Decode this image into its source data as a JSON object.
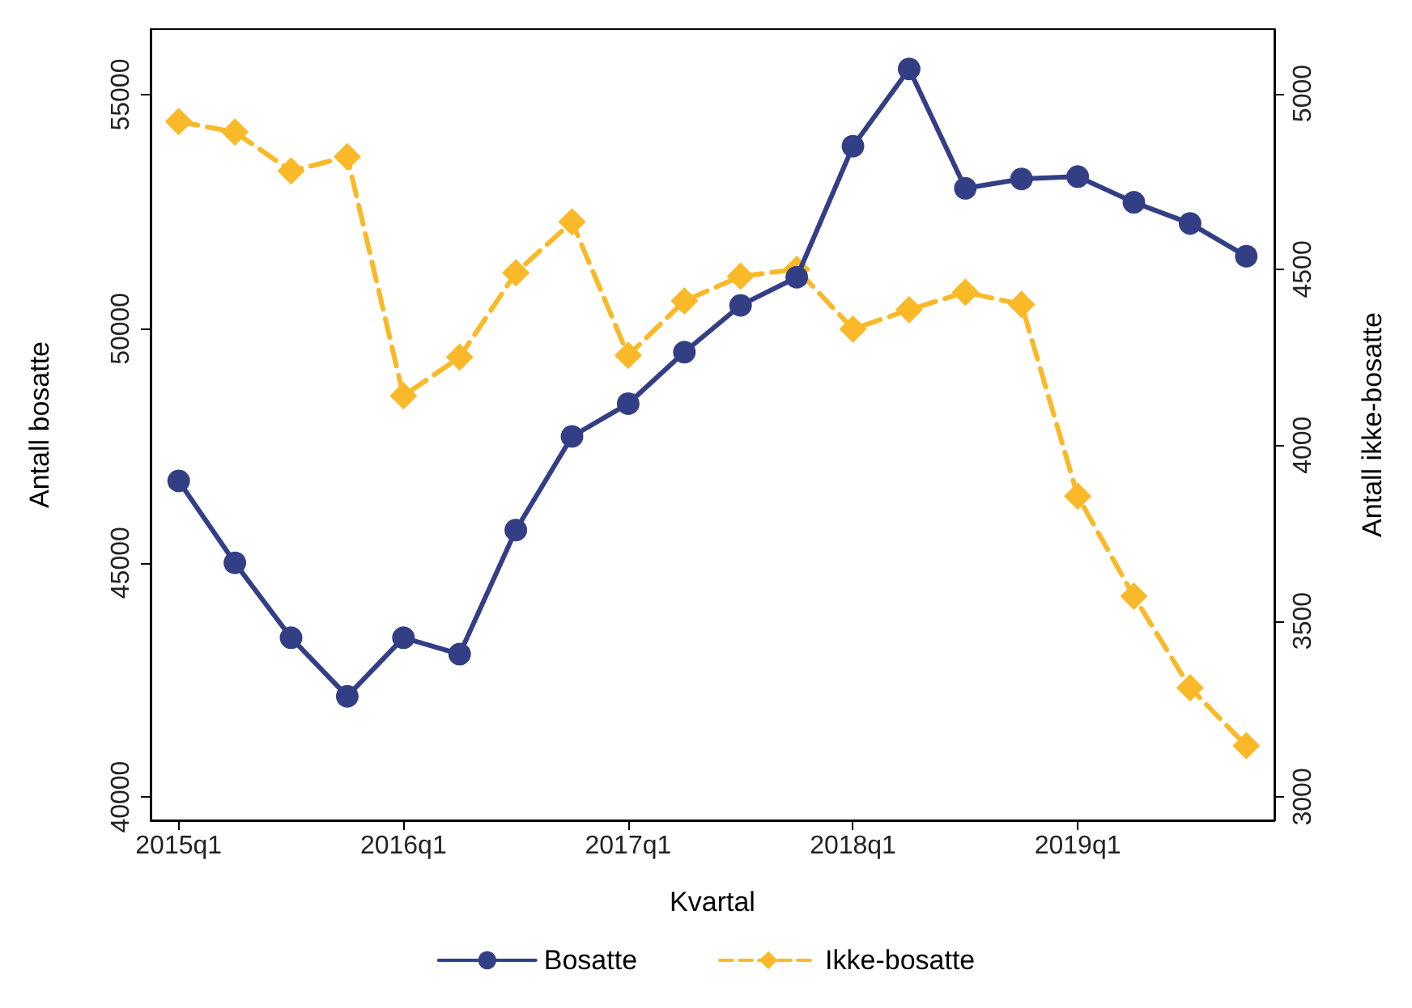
{
  "chart_data": {
    "type": "line",
    "xlabel": "Kvartal",
    "ylabel": "Antall bosatte",
    "y2label": "Antall ikke-bosatte",
    "categories": [
      "2015q1",
      null,
      null,
      null,
      "2016q1",
      null,
      null,
      null,
      "2017q1",
      null,
      null,
      null,
      "2018q1",
      null,
      null,
      null,
      "2019q1",
      null,
      null,
      null
    ],
    "ylim": [
      39500,
      56400
    ],
    "yticks": [
      40000,
      45000,
      50000,
      55000
    ],
    "y2lim": [
      2933,
      5183
    ],
    "y2ticks": [
      3000,
      3500,
      4000,
      4500,
      5000
    ],
    "series": [
      {
        "name": "Bosatte",
        "color": "#333f85",
        "marker": "circle",
        "line_style": "solid",
        "values": [
          46750,
          45000,
          43400,
          42150,
          43400,
          43050,
          45700,
          47700,
          48400,
          49500,
          50500,
          51100,
          53900,
          55550,
          53000,
          53200,
          53250,
          52700,
          52250,
          51550
        ]
      },
      {
        "name": "Ikke-bosatte",
        "color": "#f9b928",
        "marker": "diamond",
        "line_style": "dashed",
        "axis": "y2",
        "values": [
          4920,
          4890,
          4780,
          4820,
          4140,
          4250,
          4490,
          4635,
          4255,
          4410,
          4480,
          4500,
          4330,
          4385,
          4435,
          4400,
          3855,
          3570,
          3310,
          3145
        ]
      }
    ],
    "grid": false,
    "legend": "bottom"
  }
}
